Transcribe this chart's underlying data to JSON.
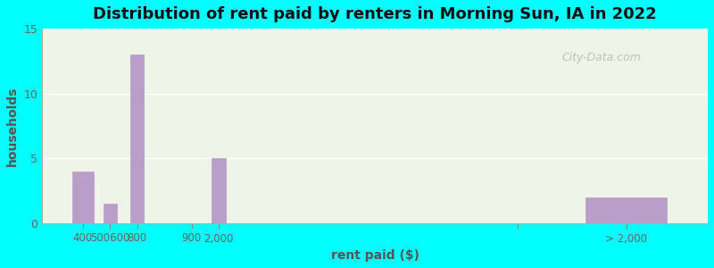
{
  "title": "Distribution of rent paid by renters in Morning Sun, IA in 2022",
  "xlabel": "rent paid ($)",
  "ylabel": "households",
  "background_outer": "#00FFFF",
  "background_inner": "#eef4e8",
  "bar_color": "#b89ec8",
  "bar_positions": [
    400,
    500,
    600,
    800,
    900,
    2000,
    2400
  ],
  "bar_widths": [
    80,
    50,
    50,
    50,
    50,
    50,
    300
  ],
  "values": [
    4,
    1.5,
    13,
    0,
    5,
    0,
    2
  ],
  "xlim": [
    250,
    2700
  ],
  "ylim": [
    0,
    15
  ],
  "yticks": [
    0,
    5,
    10,
    15
  ],
  "xtick_positions": [
    400,
    500,
    600,
    800,
    900,
    2000,
    2400
  ],
  "xtick_labels": [
    "400",
    "500600",
    "800",
    "900",
    "2,000",
    "",
    "> 2,000"
  ],
  "grid_color": "#ffffff",
  "title_fontsize": 13,
  "axis_label_color": "#555555",
  "tick_label_color": "#666666",
  "watermark": "City-Data.com"
}
